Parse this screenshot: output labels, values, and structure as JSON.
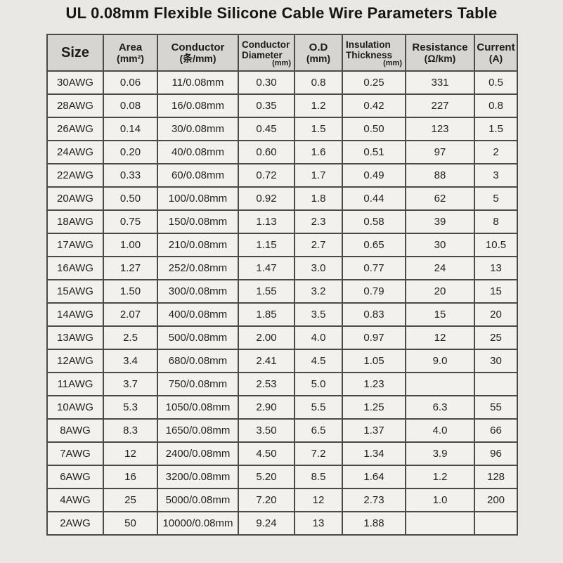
{
  "title": "UL 0.08mm Flexible Silicone Cable Wire Parameters Table",
  "table": {
    "columns": [
      {
        "id": "size",
        "title": "Size",
        "unit": ""
      },
      {
        "id": "area",
        "title": "Area",
        "unit": "(mm²)"
      },
      {
        "id": "conductor",
        "title": "Conductor",
        "unit": "(条/mm)"
      },
      {
        "id": "conductor-diameter",
        "title": "Conductor Diameter",
        "unit": "(mm)"
      },
      {
        "id": "od",
        "title": "O.D",
        "unit": "(mm)"
      },
      {
        "id": "insulation-thickness",
        "title": "Insulation Thickness",
        "unit": "(mm)"
      },
      {
        "id": "resistance",
        "title": "Resistance",
        "unit": "(Ω/km)"
      },
      {
        "id": "current",
        "title": "Current",
        "unit": "(A)"
      }
    ],
    "rows": [
      [
        "30AWG",
        "0.06",
        "11/0.08mm",
        "0.30",
        "0.8",
        "0.25",
        "331",
        "0.5"
      ],
      [
        "28AWG",
        "0.08",
        "16/0.08mm",
        "0.35",
        "1.2",
        "0.42",
        "227",
        "0.8"
      ],
      [
        "26AWG",
        "0.14",
        "30/0.08mm",
        "0.45",
        "1.5",
        "0.50",
        "123",
        "1.5"
      ],
      [
        "24AWG",
        "0.20",
        "40/0.08mm",
        "0.60",
        "1.6",
        "0.51",
        "97",
        "2"
      ],
      [
        "22AWG",
        "0.33",
        "60/0.08mm",
        "0.72",
        "1.7",
        "0.49",
        "88",
        "3"
      ],
      [
        "20AWG",
        "0.50",
        "100/0.08mm",
        "0.92",
        "1.8",
        "0.44",
        "62",
        "5"
      ],
      [
        "18AWG",
        "0.75",
        "150/0.08mm",
        "1.13",
        "2.3",
        "0.58",
        "39",
        "8"
      ],
      [
        "17AWG",
        "1.00",
        "210/0.08mm",
        "1.15",
        "2.7",
        "0.65",
        "30",
        "10.5"
      ],
      [
        "16AWG",
        "1.27",
        "252/0.08mm",
        "1.47",
        "3.0",
        "0.77",
        "24",
        "13"
      ],
      [
        "15AWG",
        "1.50",
        "300/0.08mm",
        "1.55",
        "3.2",
        "0.79",
        "20",
        "15"
      ],
      [
        "14AWG",
        "2.07",
        "400/0.08mm",
        "1.85",
        "3.5",
        "0.83",
        "15",
        "20"
      ],
      [
        "13AWG",
        "2.5",
        "500/0.08mm",
        "2.00",
        "4.0",
        "0.97",
        "12",
        "25"
      ],
      [
        "12AWG",
        "3.4",
        "680/0.08mm",
        "2.41",
        "4.5",
        "1.05",
        "9.0",
        "30"
      ],
      [
        "11AWG",
        "3.7",
        "750/0.08mm",
        "2.53",
        "5.0",
        "1.23",
        "",
        ""
      ],
      [
        "10AWG",
        "5.3",
        "1050/0.08mm",
        "2.90",
        "5.5",
        "1.25",
        "6.3",
        "55"
      ],
      [
        "8AWG",
        "8.3",
        "1650/0.08mm",
        "3.50",
        "6.5",
        "1.37",
        "4.0",
        "66"
      ],
      [
        "7AWG",
        "12",
        "2400/0.08mm",
        "4.50",
        "7.2",
        "1.34",
        "3.9",
        "96"
      ],
      [
        "6AWG",
        "16",
        "3200/0.08mm",
        "5.20",
        "8.5",
        "1.64",
        "1.2",
        "128"
      ],
      [
        "4AWG",
        "25",
        "5000/0.08mm",
        "7.20",
        "12",
        "2.73",
        "1.0",
        "200"
      ],
      [
        "2AWG",
        "50",
        "10000/0.08mm",
        "9.24",
        "13",
        "1.88",
        "",
        ""
      ]
    ]
  },
  "colors": {
    "page_bg": "#e9e8e5",
    "header_bg": "#d6d5d2",
    "cell_bg": "#f2f1ee",
    "border": "#4b4a48",
    "text": "#1c1c1a"
  }
}
